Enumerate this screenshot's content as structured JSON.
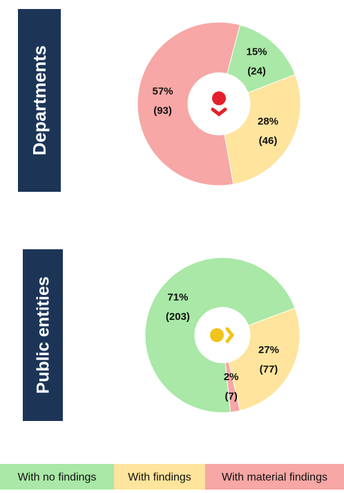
{
  "chart_data": [
    {
      "type": "pie",
      "title": "Departments",
      "values": [
        15,
        28,
        57
      ],
      "value_labels": [
        "15%",
        "28%",
        "57%"
      ],
      "counts": [
        24,
        46,
        93
      ],
      "count_labels": [
        "(24)",
        "(46)",
        "(93)"
      ],
      "start_angle": 15,
      "icon": "down",
      "icon_color": "#e3202a"
    },
    {
      "type": "pie",
      "title": "Public entities",
      "values": [
        71,
        27,
        2
      ],
      "value_labels": [
        "71%",
        "27%",
        "2%"
      ],
      "counts": [
        203,
        77,
        7
      ],
      "count_labels": [
        "(203)",
        "(77)",
        "(7)"
      ],
      "start_angle": 174,
      "icon": "right",
      "icon_color": "#f0c419"
    }
  ],
  "legend": {
    "categories": [
      "With no findings",
      "With findings",
      "With material findings"
    ],
    "colors": [
      "#a9e8a6",
      "#fee49c",
      "#f7a7a5"
    ]
  }
}
